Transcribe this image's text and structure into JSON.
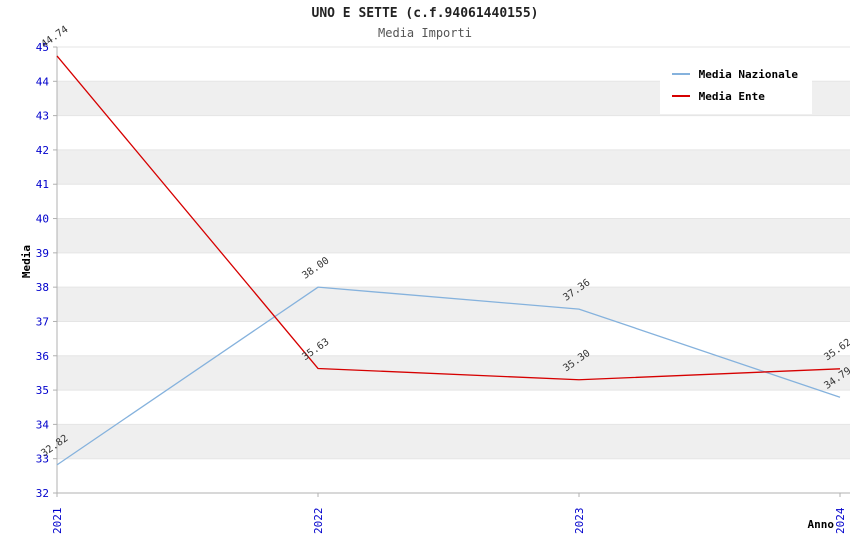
{
  "chart_data": {
    "type": "line",
    "title": "UNO E SETTE (c.f.94061440155)",
    "subtitle": "Media Importi",
    "xlabel": "Anno",
    "ylabel": "Media",
    "categories": [
      "2021",
      "2022",
      "2023",
      "2024"
    ],
    "series": [
      {
        "name": "Media Nazionale",
        "color": "#85b2dd",
        "values": [
          32.82,
          38.0,
          37.36,
          34.79
        ]
      },
      {
        "name": "Media Ente",
        "color": "#d60000",
        "values": [
          44.74,
          35.63,
          35.3,
          35.62
        ]
      }
    ],
    "ylim": [
      32,
      45
    ],
    "ytick_step": 1,
    "grid": true,
    "band_fill": true,
    "legend_position": "top-right",
    "point_label_decimals": 2
  },
  "colors": {
    "tick_label": "#0000cc",
    "point_label": "#333333",
    "band": "#efefef",
    "grid": "#e5e5e5",
    "axis": "#b0b0b0",
    "background": "#ffffff"
  }
}
